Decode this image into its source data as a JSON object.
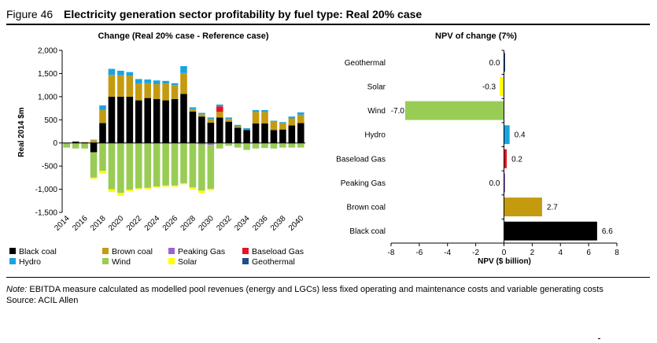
{
  "figure": {
    "label": "Figure 46",
    "title": "Electricity generation sector profitability by fuel type: Real 20% case"
  },
  "notes": {
    "note_label": "Note:",
    "note_text": " EBITDA measure calculated as modelled pool revenues (energy and LGCs) less fixed operating and maintenance costs and variable generating costs",
    "source": "Source: ACIL Allen"
  },
  "legend": [
    {
      "name": "Black coal",
      "color": "#000000"
    },
    {
      "name": "Brown coal",
      "color": "#C49A0F"
    },
    {
      "name": "Peaking Gas",
      "color": "#9966CC"
    },
    {
      "name": "Baseload Gas",
      "color": "#E8141E"
    },
    {
      "name": "Hydro",
      "color": "#1AA3E0"
    },
    {
      "name": "Wind",
      "color": "#99CC55"
    },
    {
      "name": "Solar",
      "color": "#FFFF00"
    },
    {
      "name": "Geothermal",
      "color": "#1F4E8C"
    }
  ],
  "chart_data": [
    {
      "type": "bar",
      "subtype": "stacked",
      "title": "Change (Real 20% case - Reference case)",
      "xlabel": "",
      "ylabel": "Real 2014 $m",
      "ylim": [
        -1500,
        2000
      ],
      "yticks": [
        "2,000",
        "1,500",
        "1,000",
        "500",
        "0",
        "-500",
        "-1,000",
        "-1,500"
      ],
      "ytick_values": [
        2000,
        1500,
        1000,
        500,
        0,
        -500,
        -1000,
        -1500
      ],
      "x": [
        2014,
        2015,
        2016,
        2017,
        2018,
        2019,
        2020,
        2021,
        2022,
        2023,
        2024,
        2025,
        2026,
        2027,
        2028,
        2029,
        2030,
        2031,
        2032,
        2033,
        2034,
        2035,
        2036,
        2037,
        2038,
        2039,
        2040
      ],
      "xtick_labels": [
        "2014",
        "2016",
        "2018",
        "2020",
        "2022",
        "2024",
        "2026",
        "2028",
        "2030",
        "2032",
        "2034",
        "2036",
        "2038",
        "2040"
      ],
      "series": [
        {
          "name": "Black coal",
          "color": "#000000",
          "values": [
            0,
            30,
            10,
            -200,
            430,
            1000,
            1000,
            1000,
            920,
            970,
            950,
            920,
            950,
            1060,
            680,
            570,
            440,
            550,
            460,
            330,
            280,
            420,
            420,
            280,
            290,
            380,
            430
          ]
        },
        {
          "name": "Brown coal",
          "color": "#C49A0F",
          "values": [
            0,
            0,
            10,
            60,
            280,
            470,
            460,
            450,
            360,
            320,
            320,
            360,
            300,
            450,
            50,
            50,
            80,
            120,
            60,
            30,
            0,
            250,
            250,
            180,
            140,
            150,
            180
          ]
        },
        {
          "name": "Peaking Gas",
          "color": "#9966CC",
          "values": [
            0,
            0,
            0,
            0,
            0,
            0,
            0,
            0,
            0,
            0,
            0,
            0,
            0,
            0,
            0,
            -30,
            -40,
            0,
            0,
            0,
            0,
            0,
            0,
            0,
            0,
            -20,
            0
          ]
        },
        {
          "name": "Baseload Gas",
          "color": "#E8141E",
          "values": [
            0,
            0,
            0,
            0,
            0,
            0,
            0,
            0,
            0,
            0,
            0,
            0,
            0,
            0,
            0,
            0,
            0,
            120,
            0,
            0,
            0,
            0,
            0,
            0,
            0,
            0,
            0
          ]
        },
        {
          "name": "Hydro",
          "color": "#1AA3E0",
          "values": [
            0,
            0,
            0,
            10,
            100,
            130,
            100,
            80,
            100,
            80,
            80,
            60,
            40,
            150,
            40,
            30,
            30,
            40,
            30,
            30,
            40,
            40,
            40,
            20,
            20,
            40,
            50
          ]
        },
        {
          "name": "Wind",
          "color": "#99CC55",
          "values": [
            -100,
            -120,
            -120,
            -550,
            -600,
            -1000,
            -1080,
            -1010,
            -980,
            -970,
            -940,
            -920,
            -920,
            -870,
            -960,
            -1000,
            -950,
            -120,
            -60,
            -100,
            -150,
            -120,
            -110,
            -120,
            -100,
            -80,
            -100
          ]
        },
        {
          "name": "Solar",
          "color": "#FFFF00",
          "values": [
            0,
            0,
            0,
            -20,
            -60,
            -60,
            -60,
            -30,
            -20,
            -20,
            -20,
            -20,
            -20,
            -20,
            -40,
            -50,
            -30,
            0,
            0,
            0,
            0,
            0,
            0,
            0,
            0,
            0,
            0
          ]
        },
        {
          "name": "Geothermal",
          "color": "#1F4E8C",
          "values": [
            0,
            0,
            0,
            0,
            0,
            0,
            0,
            0,
            0,
            0,
            0,
            0,
            0,
            0,
            0,
            0,
            0,
            0,
            0,
            0,
            0,
            0,
            0,
            0,
            0,
            0,
            0
          ]
        }
      ],
      "grid": false
    },
    {
      "type": "bar",
      "orientation": "horizontal",
      "title": "NPV of change (7%)",
      "xlabel": "NPV ($ billion)",
      "ylabel": "",
      "xlim": [
        -8,
        8
      ],
      "xticks": [
        "-8",
        "-6",
        "-4",
        "-2",
        "0",
        "2",
        "4",
        "6",
        "8"
      ],
      "xtick_values": [
        -8,
        -6,
        -4,
        -2,
        0,
        2,
        4,
        6,
        8
      ],
      "categories": [
        "Geothermal",
        "Solar",
        "Wind",
        "Hydro",
        "Baseload Gas",
        "Peaking Gas",
        "Brown coal",
        "Black coal"
      ],
      "values": [
        0.0,
        -0.3,
        -7.0,
        0.4,
        0.2,
        0.0,
        2.7,
        6.6
      ],
      "value_labels": [
        "0.0",
        "-0.3",
        "-7.0",
        "0.4",
        "0.2",
        "0.0",
        "2.7",
        "6.6"
      ],
      "colors": [
        "#1F4E8C",
        "#FFFF00",
        "#99CC55",
        "#1AA3E0",
        "#E8141E",
        "#9966CC",
        "#C49A0F",
        "#000000"
      ],
      "grid": false
    }
  ]
}
